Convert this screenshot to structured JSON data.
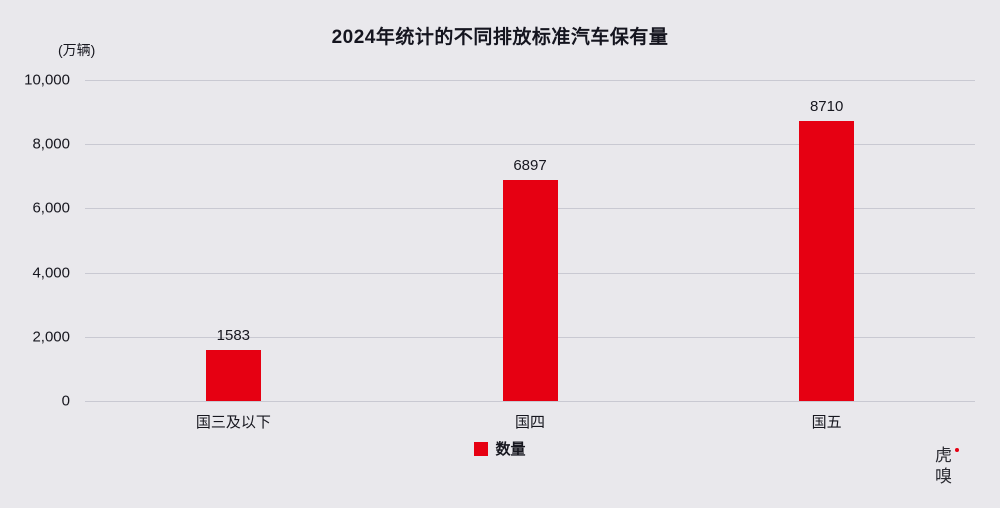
{
  "title": "2024年统计的不同排放标准汽车保有量",
  "unit_label": "(万辆)",
  "legend": {
    "label": "数量",
    "color": "#e60012"
  },
  "logo": {
    "line1": "虎",
    "line2": "嗅"
  },
  "chart_data": {
    "type": "bar",
    "title": "2024年统计的不同排放标准汽车保有量",
    "categories": [
      "国三及以下",
      "国四",
      "国五"
    ],
    "values": [
      1583,
      6897,
      8710
    ],
    "xlabel": "",
    "ylabel": "(万辆)",
    "ylim": [
      0,
      10000
    ],
    "ytick_step": 2000,
    "ytick_labels": [
      "0",
      "2,000",
      "4,000",
      "6,000",
      "8,000",
      "10,000"
    ],
    "bar_color": "#e60012",
    "grid": true,
    "legend_entries": [
      "数量"
    ],
    "legend_position": "bottom"
  }
}
